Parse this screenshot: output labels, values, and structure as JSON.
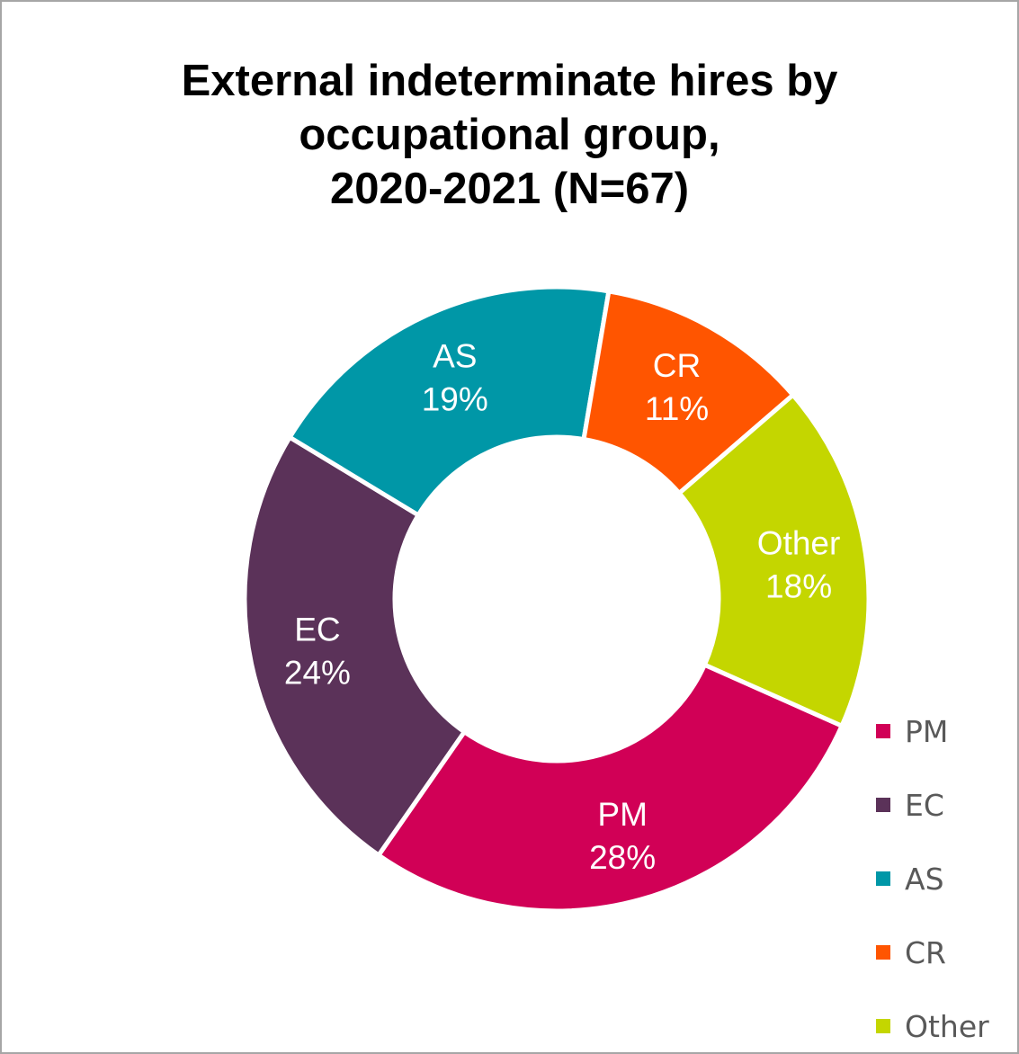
{
  "chart_data": {
    "type": "pie",
    "style": "donut",
    "title_lines": [
      "External indeterminate hires by",
      "occupational group,",
      "2020-2021 (N=67)"
    ],
    "slices": [
      {
        "label": "PM",
        "value": 28,
        "value_label": "28%",
        "color": "#d10056"
      },
      {
        "label": "EC",
        "value": 24,
        "value_label": "24%",
        "color": "#5b3259"
      },
      {
        "label": "AS",
        "value": 19,
        "value_label": "19%",
        "color": "#0097a7"
      },
      {
        "label": "CR",
        "value": 11,
        "value_label": "11%",
        "color": "#ff5500"
      },
      {
        "label": "Other",
        "value": 18,
        "value_label": "18%",
        "color": "#c4d600"
      }
    ],
    "legend": {
      "position": "bottom-right",
      "entries": [
        "PM",
        "EC",
        "AS",
        "CR",
        "Other"
      ]
    }
  }
}
